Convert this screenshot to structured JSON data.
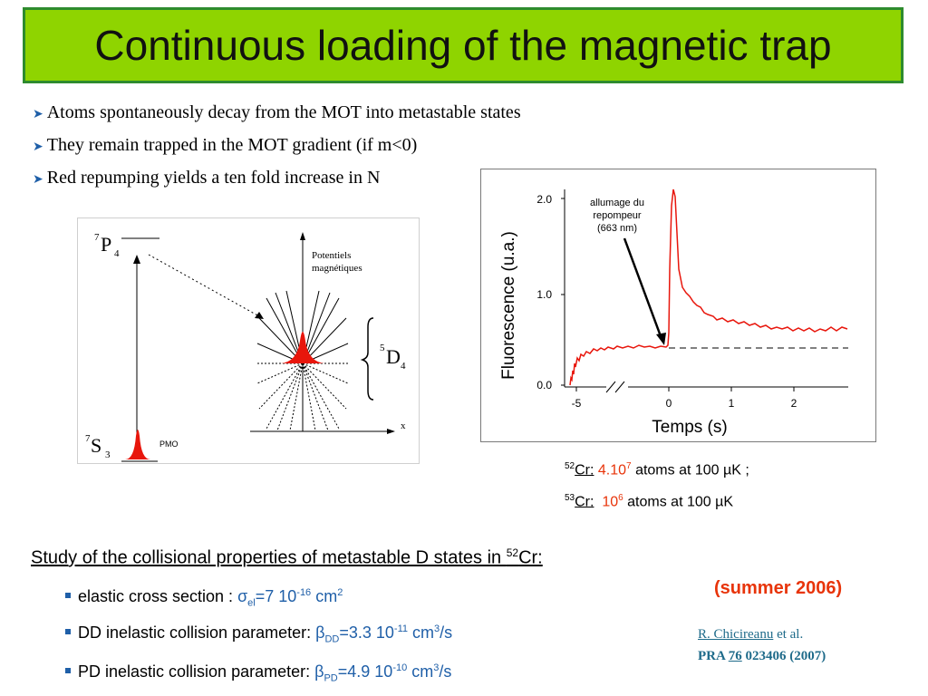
{
  "title": "Continuous loading of the magnetic trap",
  "bullets": [
    "Atoms spontaneously decay from the MOT into metastable states",
    "They remain trapped in the MOT gradient (if m<0)",
    "Red repumping yields a ten fold increase in N"
  ],
  "diagram": {
    "level_p": "P",
    "level_p_sup": "7",
    "level_p_sub": "4",
    "level_s": "S",
    "level_s_sup": "7",
    "level_s_sub": "3",
    "level_d": "D",
    "level_d_sup": "5",
    "level_d_sub": "4",
    "potentials_line1": "Potentiels",
    "potentials_line2": "magnétiques",
    "pmo_label": "PMO",
    "x_label": "x"
  },
  "graph": {
    "ylabel": "Fluorescence (u.a.)",
    "xlabel": "Temps (s)",
    "y_ticks": [
      "0.0",
      "1.0",
      "2.0"
    ],
    "x_ticks": [
      "-5",
      "0",
      "1",
      "2"
    ],
    "annotation_line1": "allumage du",
    "annotation_line2": "repompeur",
    "annotation_line3": "(663 nm)"
  },
  "atoms": {
    "line1_sup": "52",
    "line1_iso": "Cr:",
    "line1_val": "4.10",
    "line1_exp": "7",
    "line1_rest": "atoms at 100 µK ;",
    "line2_sup": "53",
    "line2_iso": "Cr:",
    "line2_val": "10",
    "line2_exp": "6",
    "line2_rest": "atoms at 100 µK"
  },
  "study": {
    "text": "Study of the collisional properties of metastable D states in ",
    "sup": "52",
    "tail": "Cr:"
  },
  "items": {
    "i1_label": "elastic cross section : ",
    "i1_sym": "σ",
    "i1_sub": "el",
    "i1_val": "=7 10",
    "i1_exp": "-16",
    "i1_unit": " cm",
    "i1_unit_exp": "2",
    "i2_label": "DD inelastic collision parameter: ",
    "i2_sym": "β",
    "i2_sub": "DD",
    "i2_val": "=3.3 10",
    "i2_exp": "-11",
    "i2_unit": " cm",
    "i2_unit_exp": "3",
    "i2_tail": "/s",
    "i3_label": "PD inelastic collision parameter:  ",
    "i3_sym": "β",
    "i3_sub": "PD",
    "i3_val": "=4.9 10",
    "i3_exp": "-10",
    "i3_unit": " cm",
    "i3_unit_exp": "3",
    "i3_tail": "/s"
  },
  "summer": "(summer 2006)",
  "reference": {
    "author": "R. Chicireanu",
    "etal": " et al.",
    "journal": "PRA ",
    "volume": "76",
    "pages": " 023406 (2007)"
  },
  "colors": {
    "title_bg": "#8fd400",
    "title_border": "#2e8b2e",
    "accent_red": "#e8340a",
    "accent_blue": "#1f5fa8"
  }
}
